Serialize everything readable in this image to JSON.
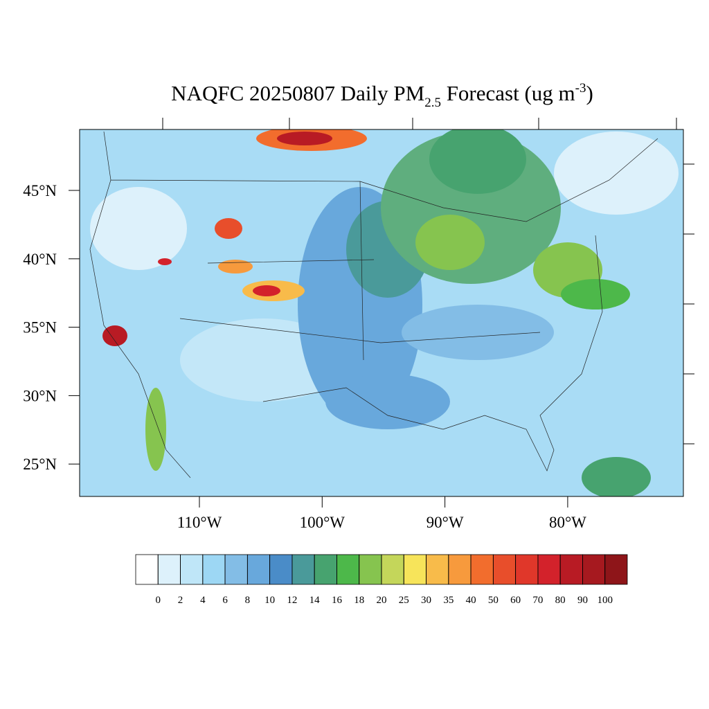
{
  "header": {
    "title": {
      "main": "NAQFC 20250807 Daily PM",
      "sub": "2.5",
      "middle": " Forecast (ug m",
      "sup": "-3",
      "end": ")"
    }
  },
  "map": {
    "lat_labels": [
      "45°N",
      "40°N",
      "35°N",
      "30°N",
      "25°N"
    ],
    "lon_labels": [
      "110°W",
      "100°W",
      "90°W",
      "80°W"
    ]
  },
  "colorbar": {
    "levels": [
      0,
      2,
      4,
      6,
      8,
      10,
      12,
      14,
      16,
      18,
      20,
      25,
      30,
      35,
      40,
      50,
      60,
      70,
      80,
      90,
      100
    ],
    "colors": [
      "#ffffff",
      "#ddf1fb",
      "#bfe6f8",
      "#9dd7f4",
      "#83bde6",
      "#68a8dc",
      "#4a8cc8",
      "#4a9a9a",
      "#47a36f",
      "#4db84a",
      "#86c44f",
      "#c4d65a",
      "#f7e45a",
      "#f8bb4a",
      "#f79a3d",
      "#f26d2d",
      "#e84e2b",
      "#e0372a",
      "#d3222b",
      "#b81b24",
      "#a6191f",
      "#8e1519"
    ]
  }
}
